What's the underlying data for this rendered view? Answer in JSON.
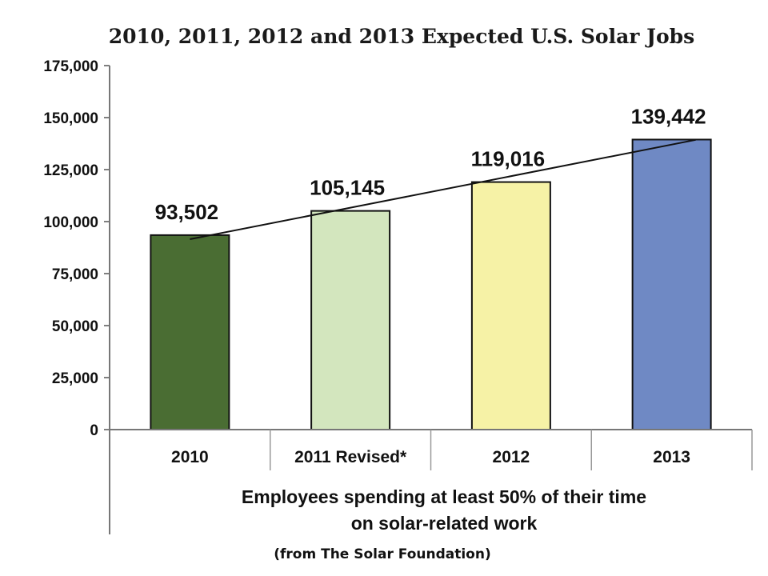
{
  "chart_data": {
    "type": "bar",
    "title": "2010, 2011, 2012 and 2013 Expected U.S. Solar Jobs",
    "categories": [
      "2010",
      "2011 Revised*",
      "2012",
      "2013"
    ],
    "values": [
      93502,
      105145,
      119016,
      139442
    ],
    "data_labels": [
      "93,502",
      "105,145",
      "119,016",
      "139,442"
    ],
    "bar_colors": [
      "#4a6d33",
      "#d3e6be",
      "#f6f2a6",
      "#6f89c4"
    ],
    "ylim": [
      0,
      175000
    ],
    "yticks": [
      0,
      25000,
      50000,
      75000,
      100000,
      125000,
      150000,
      175000
    ],
    "ytick_labels": [
      "0",
      "25,000",
      "50,000",
      "75,000",
      "100,000",
      "125,000",
      "150,000",
      "175,000"
    ],
    "xlabel_lines": [
      "Employees spending at least 50% of their time",
      "on solar-related work"
    ],
    "ylabel": "",
    "grid": false,
    "trendline": true,
    "legend": "none",
    "source": "(from The Solar Foundation)"
  }
}
